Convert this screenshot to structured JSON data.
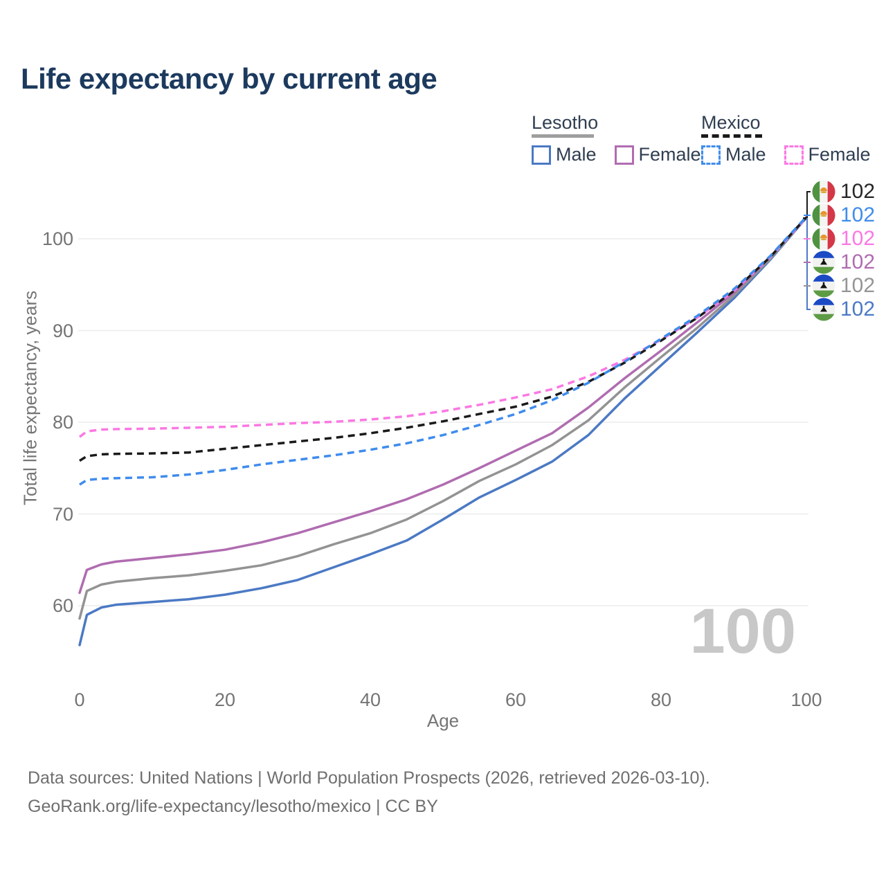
{
  "title": "Life expectancy by current age",
  "legend": {
    "groups": [
      {
        "name": "Lesotho",
        "line_style": "solid",
        "underline_color": "#9e9e9e",
        "items": [
          {
            "label": "Male",
            "color": "#4b79c4"
          },
          {
            "label": "Female",
            "color": "#b06cb0"
          }
        ]
      },
      {
        "name": "Mexico",
        "line_style": "dashed",
        "underline_color": "#1a1a1a",
        "items": [
          {
            "label": "Male",
            "color": "#3f8cec"
          },
          {
            "label": "Female",
            "color": "#fb78e3"
          }
        ]
      }
    ]
  },
  "chart_data": {
    "type": "line",
    "title": "Life expectancy by current age",
    "xlabel": "Age",
    "ylabel": "Total life expectancy, years",
    "xlim": [
      0,
      100
    ],
    "ylim": [
      55,
      104
    ],
    "x_ticks": [
      0,
      20,
      40,
      60,
      80,
      100
    ],
    "y_ticks": [
      60,
      70,
      80,
      90,
      100
    ],
    "grid": "horizontal",
    "legend_position": "top-right",
    "ages": [
      0,
      1,
      3,
      5,
      10,
      15,
      20,
      25,
      30,
      35,
      40,
      45,
      50,
      55,
      60,
      65,
      70,
      75,
      80,
      85,
      90,
      95,
      100
    ],
    "series": [
      {
        "name": "Lesotho Male",
        "country": "Lesotho",
        "sex": "Male",
        "style": "solid",
        "color": "#4b79c4",
        "values": [
          55.7,
          59.0,
          59.8,
          60.1,
          60.4,
          60.7,
          61.2,
          61.9,
          62.8,
          64.2,
          65.6,
          67.1,
          69.4,
          71.8,
          73.7,
          75.7,
          78.6,
          82.6,
          86.2,
          89.8,
          93.5,
          97.7,
          102.3
        ]
      },
      {
        "name": "Lesotho Both sexes",
        "country": "Lesotho",
        "sex": "Both sexes",
        "style": "solid",
        "color": "#939393",
        "values": [
          58.6,
          61.6,
          62.3,
          62.6,
          63.0,
          63.3,
          63.8,
          64.4,
          65.4,
          66.7,
          67.9,
          69.4,
          71.4,
          73.6,
          75.4,
          77.5,
          80.2,
          83.8,
          87.1,
          90.3,
          93.8,
          97.8,
          102.3
        ]
      },
      {
        "name": "Lesotho Female",
        "country": "Lesotho",
        "sex": "Female",
        "style": "solid",
        "color": "#b06cb0",
        "values": [
          61.4,
          63.9,
          64.5,
          64.8,
          65.2,
          65.6,
          66.1,
          66.9,
          67.9,
          69.1,
          70.3,
          71.6,
          73.2,
          75.0,
          76.9,
          78.8,
          81.6,
          84.8,
          87.8,
          90.9,
          94.1,
          98.0,
          102.3
        ]
      },
      {
        "name": "Mexico Female",
        "country": "Mexico",
        "sex": "Female",
        "style": "dashed",
        "color": "#fb78e3",
        "values": [
          78.4,
          79.0,
          79.2,
          79.25,
          79.3,
          79.4,
          79.5,
          79.7,
          79.9,
          80.05,
          80.3,
          80.65,
          81.2,
          81.9,
          82.7,
          83.6,
          85.0,
          86.8,
          89.0,
          91.4,
          94.3,
          98.0,
          102.3
        ]
      },
      {
        "name": "Mexico Both sexes",
        "country": "Mexico",
        "sex": "Both sexes",
        "style": "dashed",
        "color": "#1a1a1a",
        "values": [
          75.8,
          76.3,
          76.5,
          76.55,
          76.6,
          76.7,
          77.1,
          77.5,
          77.9,
          78.3,
          78.8,
          79.4,
          80.1,
          80.9,
          81.7,
          82.8,
          84.4,
          86.5,
          88.9,
          91.4,
          94.3,
          98.0,
          102.35
        ]
      },
      {
        "name": "Mexico Male",
        "country": "Mexico",
        "sex": "Male",
        "style": "dashed",
        "color": "#3f8cec",
        "values": [
          73.2,
          73.7,
          73.85,
          73.9,
          74.0,
          74.3,
          74.8,
          75.4,
          75.9,
          76.4,
          77.0,
          77.7,
          78.6,
          79.7,
          80.9,
          82.4,
          84.3,
          86.6,
          89.1,
          91.6,
          94.5,
          98.1,
          102.4
        ]
      }
    ]
  },
  "end_labels": [
    {
      "flag": "mexico",
      "series": "Mexico Both sexes",
      "value": "102",
      "color": "#262626"
    },
    {
      "flag": "mexico",
      "series": "Mexico Male",
      "value": "102",
      "color": "#3f8cec"
    },
    {
      "flag": "mexico",
      "series": "Mexico Female",
      "value": "102",
      "color": "#fb78e3"
    },
    {
      "flag": "lesotho",
      "series": "Lesotho Female",
      "value": "102",
      "color": "#b06cb0"
    },
    {
      "flag": "lesotho",
      "series": "Lesotho Both sexes",
      "value": "102",
      "color": "#959595"
    },
    {
      "flag": "lesotho",
      "series": "Lesotho Male",
      "value": "102",
      "color": "#4b79c4"
    }
  ],
  "watermark": "100",
  "footer": {
    "line1": "Data sources: United Nations | World Population Prospects (2026, retrieved 2026-03-10).",
    "line2": "GeoRank.org/life-expectancy/lesotho/mexico | CC BY"
  }
}
